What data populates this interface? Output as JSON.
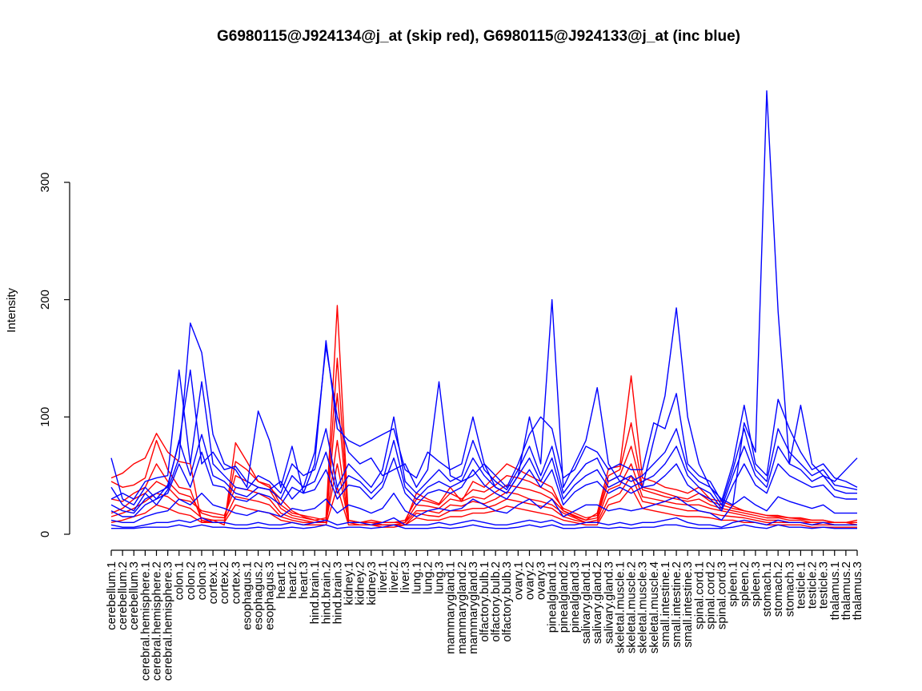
{
  "chart_data": {
    "type": "line",
    "title": "G6980115@J924134@j_at (skip red), G6980115@J924133@j_at (inc blue)",
    "xlabel": "",
    "ylabel": "Intensity",
    "ylim": [
      0,
      380
    ],
    "yticks": [
      0,
      100,
      200,
      300
    ],
    "grid": false,
    "legend": "none",
    "colors": {
      "skip": "#ff0000",
      "inc": "#0000ff",
      "axis": "#000000"
    },
    "categories": [
      "cerebellum.1",
      "cerebellum.2",
      "cerebellum.3",
      "cerebral.hemisphere.1",
      "cerebral.hemisphere.2",
      "cerebral.hemisphere.3",
      "colon.1",
      "colon.2",
      "colon.3",
      "cortex.1",
      "cortex.2",
      "cortex.3",
      "esophagus.1",
      "esophagus.2",
      "esophagus.3",
      "heart.1",
      "heart.2",
      "heart.3",
      "hind.brain.1",
      "hind.brain.2",
      "hind.brain.3",
      "kidney.1",
      "kidney.2",
      "kidney.3",
      "liver.1",
      "liver.2",
      "liver.3",
      "lung.1",
      "lung.2",
      "lung.3",
      "mammarygland.1",
      "mammarygland.2",
      "mammarygland.3",
      "olfactory.bulb.1",
      "olfactory.bulb.2",
      "olfactory.bulb.3",
      "ovary.1",
      "ovary.2",
      "ovary.3",
      "pinealgland.1",
      "pinealgland.2",
      "pinealgland.3",
      "salivary.gland.1",
      "salivary.gland.2",
      "salivary.gland.3",
      "skeletal.muscle.1",
      "skeletal.muscle.2",
      "skeletal.muscle.3",
      "skeletal.muscle.4",
      "small.intestine.1",
      "small.intestine.2",
      "small.intestine.3",
      "spinal.cord.1",
      "spinal.cord.2",
      "spinal.cord.3",
      "spleen.1",
      "spleen.2",
      "spleen.3",
      "stomach.1",
      "stomach.2",
      "stomach.3",
      "testicle.1",
      "testicle.2",
      "testicle.3",
      "thalamus.1",
      "thalamus.2",
      "thalamus.3"
    ],
    "series": [
      {
        "group": "skip",
        "values": [
          48,
          52,
          60,
          65,
          86,
          70,
          62,
          60,
          10,
          12,
          8,
          78,
          62,
          45,
          40,
          30,
          20,
          15,
          12,
          14,
          195,
          12,
          10,
          10,
          8,
          8,
          10,
          35,
          30,
          26,
          40,
          28,
          45,
          40,
          50,
          60,
          55,
          50,
          45,
          40,
          20,
          15,
          12,
          18,
          56,
          58,
          135,
          48,
          45,
          40,
          38,
          35,
          40,
          30,
          28,
          24,
          20,
          18,
          16,
          16,
          14,
          14,
          12,
          12,
          10,
          10,
          12
        ]
      },
      {
        "group": "skip",
        "values": [
          45,
          40,
          42,
          48,
          80,
          55,
          40,
          38,
          12,
          10,
          10,
          62,
          55,
          45,
          42,
          25,
          18,
          16,
          14,
          12,
          150,
          12,
          10,
          12,
          10,
          10,
          12,
          30,
          28,
          25,
          35,
          30,
          38,
          36,
          42,
          50,
          48,
          45,
          40,
          35,
          22,
          18,
          14,
          16,
          50,
          55,
          95,
          40,
          38,
          35,
          32,
          30,
          35,
          28,
          25,
          22,
          20,
          18,
          16,
          15,
          14,
          13,
          12,
          12,
          10,
          10,
          10
        ]
      },
      {
        "group": "skip",
        "values": [
          30,
          28,
          35,
          40,
          60,
          45,
          35,
          32,
          18,
          15,
          14,
          50,
          45,
          40,
          38,
          22,
          16,
          14,
          12,
          10,
          120,
          10,
          10,
          10,
          10,
          10,
          10,
          25,
          24,
          22,
          30,
          28,
          32,
          30,
          36,
          42,
          40,
          38,
          35,
          30,
          20,
          16,
          12,
          14,
          45,
          50,
          75,
          38,
          35,
          32,
          30,
          28,
          30,
          25,
          22,
          20,
          18,
          16,
          14,
          14,
          12,
          12,
          10,
          10,
          10,
          10,
          8
        ]
      },
      {
        "group": "skip",
        "values": [
          18,
          22,
          30,
          35,
          45,
          40,
          30,
          28,
          20,
          18,
          16,
          40,
          38,
          35,
          30,
          18,
          14,
          12,
          10,
          10,
          80,
          10,
          10,
          10,
          8,
          8,
          10,
          20,
          20,
          18,
          25,
          24,
          28,
          26,
          30,
          36,
          34,
          30,
          28,
          25,
          18,
          14,
          10,
          12,
          38,
          42,
          60,
          32,
          30,
          28,
          26,
          25,
          25,
          22,
          20,
          18,
          16,
          14,
          12,
          12,
          10,
          10,
          10,
          10,
          8,
          8,
          8
        ]
      },
      {
        "group": "skip",
        "values": [
          15,
          18,
          22,
          28,
          35,
          32,
          25,
          22,
          14,
          12,
          12,
          32,
          30,
          28,
          25,
          15,
          12,
          10,
          10,
          10,
          60,
          10,
          8,
          8,
          8,
          8,
          8,
          18,
          16,
          15,
          20,
          20,
          22,
          22,
          25,
          30,
          28,
          26,
          24,
          22,
          15,
          12,
          10,
          10,
          30,
          35,
          50,
          28,
          26,
          24,
          22,
          20,
          20,
          18,
          16,
          15,
          14,
          12,
          10,
          10,
          10,
          10,
          8,
          8,
          8,
          8,
          8
        ]
      },
      {
        "group": "skip",
        "values": [
          10,
          12,
          15,
          18,
          25,
          22,
          18,
          16,
          10,
          10,
          10,
          25,
          22,
          20,
          18,
          12,
          10,
          8,
          8,
          8,
          40,
          8,
          8,
          8,
          6,
          6,
          8,
          14,
          12,
          12,
          15,
          15,
          18,
          18,
          20,
          24,
          22,
          20,
          18,
          16,
          12,
          10,
          8,
          8,
          25,
          28,
          40,
          22,
          20,
          18,
          16,
          15,
          15,
          14,
          12,
          12,
          10,
          10,
          8,
          8,
          8,
          8,
          6,
          6,
          6,
          6,
          6
        ]
      },
      {
        "group": "inc",
        "values": [
          65,
          30,
          25,
          40,
          30,
          42,
          78,
          140,
          60,
          70,
          55,
          58,
          45,
          40,
          38,
          45,
          30,
          40,
          70,
          160,
          100,
          70,
          60,
          65,
          50,
          55,
          60,
          40,
          55,
          130,
          50,
          45,
          50,
          60,
          40,
          35,
          50,
          100,
          60,
          200,
          40,
          60,
          80,
          125,
          60,
          45,
          50,
          40,
          80,
          118,
          193,
          100,
          60,
          40,
          30,
          25,
          95,
          70,
          378,
          190,
          60,
          110,
          60,
          50,
          45,
          55,
          65
        ]
      },
      {
        "group": "inc",
        "values": [
          40,
          25,
          20,
          35,
          25,
          38,
          65,
          180,
          155,
          85,
          60,
          55,
          40,
          105,
          80,
          40,
          75,
          35,
          60,
          165,
          90,
          80,
          75,
          80,
          85,
          90,
          55,
          48,
          70,
          62,
          55,
          60,
          100,
          60,
          50,
          40,
          60,
          85,
          100,
          90,
          48,
          55,
          75,
          70,
          55,
          60,
          55,
          55,
          95,
          90,
          120,
          60,
          50,
          45,
          28,
          60,
          110,
          60,
          50,
          115,
          90,
          70,
          55,
          60,
          48,
          45,
          40
        ]
      },
      {
        "group": "inc",
        "values": [
          30,
          35,
          30,
          45,
          48,
          50,
          140,
          60,
          130,
          60,
          50,
          40,
          38,
          50,
          45,
          35,
          60,
          50,
          55,
          90,
          40,
          60,
          50,
          40,
          55,
          100,
          45,
          35,
          45,
          55,
          45,
          50,
          80,
          55,
          45,
          38,
          55,
          75,
          50,
          75,
          35,
          48,
          60,
          65,
          45,
          50,
          45,
          50,
          60,
          70,
          90,
          55,
          45,
          40,
          25,
          55,
          90,
          55,
          45,
          90,
          70,
          60,
          50,
          55,
          42,
          40,
          38
        ]
      },
      {
        "group": "inc",
        "values": [
          25,
          20,
          18,
          30,
          35,
          40,
          80,
          50,
          85,
          50,
          45,
          35,
          32,
          40,
          38,
          30,
          50,
          40,
          45,
          70,
          35,
          50,
          45,
          35,
          45,
          80,
          40,
          30,
          40,
          45,
          40,
          45,
          65,
          50,
          40,
          35,
          50,
          65,
          45,
          65,
          30,
          42,
          50,
          55,
          40,
          45,
          40,
          45,
          50,
          60,
          75,
          50,
          40,
          35,
          22,
          50,
          75,
          50,
          40,
          75,
          60,
          55,
          45,
          50,
          38,
          35,
          35
        ]
      },
      {
        "group": "inc",
        "values": [
          20,
          15,
          15,
          25,
          30,
          35,
          60,
          40,
          70,
          42,
          40,
          30,
          28,
          35,
          32,
          25,
          40,
          35,
          38,
          55,
          30,
          42,
          40,
          30,
          40,
          65,
          35,
          25,
          35,
          38,
          35,
          40,
          55,
          42,
          35,
          30,
          42,
          55,
          40,
          55,
          25,
          36,
          42,
          45,
          35,
          40,
          35,
          40,
          42,
          50,
          60,
          42,
          35,
          30,
          20,
          42,
          60,
          42,
          35,
          60,
          50,
          45,
          40,
          42,
          32,
          30,
          30
        ]
      },
      {
        "group": "inc",
        "values": [
          12,
          10,
          10,
          15,
          18,
          20,
          30,
          25,
          35,
          25,
          22,
          18,
          16,
          20,
          18,
          15,
          22,
          20,
          22,
          30,
          18,
          25,
          22,
          18,
          22,
          35,
          20,
          15,
          20,
          22,
          20,
          22,
          30,
          25,
          20,
          18,
          25,
          30,
          22,
          30,
          15,
          20,
          25,
          25,
          20,
          22,
          20,
          22,
          25,
          28,
          32,
          25,
          20,
          18,
          12,
          25,
          32,
          25,
          20,
          32,
          28,
          25,
          22,
          25,
          18,
          18,
          18
        ]
      },
      {
        "group": "inc",
        "values": [
          8,
          6,
          6,
          8,
          10,
          10,
          12,
          10,
          14,
          10,
          10,
          8,
          8,
          10,
          8,
          8,
          10,
          8,
          10,
          12,
          8,
          10,
          10,
          8,
          10,
          14,
          8,
          8,
          8,
          10,
          8,
          10,
          12,
          10,
          8,
          8,
          10,
          12,
          10,
          12,
          8,
          8,
          10,
          10,
          8,
          10,
          8,
          10,
          10,
          12,
          14,
          10,
          8,
          8,
          6,
          10,
          12,
          10,
          8,
          12,
          10,
          10,
          8,
          10,
          8,
          8,
          8
        ]
      },
      {
        "group": "inc",
        "values": [
          5,
          5,
          5,
          6,
          6,
          6,
          8,
          6,
          8,
          6,
          6,
          5,
          5,
          6,
          5,
          5,
          6,
          5,
          6,
          8,
          5,
          6,
          6,
          5,
          6,
          8,
          5,
          5,
          5,
          6,
          5,
          6,
          8,
          6,
          5,
          5,
          6,
          8,
          6,
          8,
          5,
          5,
          6,
          6,
          5,
          6,
          5,
          6,
          6,
          8,
          8,
          6,
          5,
          5,
          5,
          6,
          8,
          6,
          5,
          8,
          6,
          6,
          5,
          6,
          5,
          5,
          5
        ]
      }
    ]
  }
}
